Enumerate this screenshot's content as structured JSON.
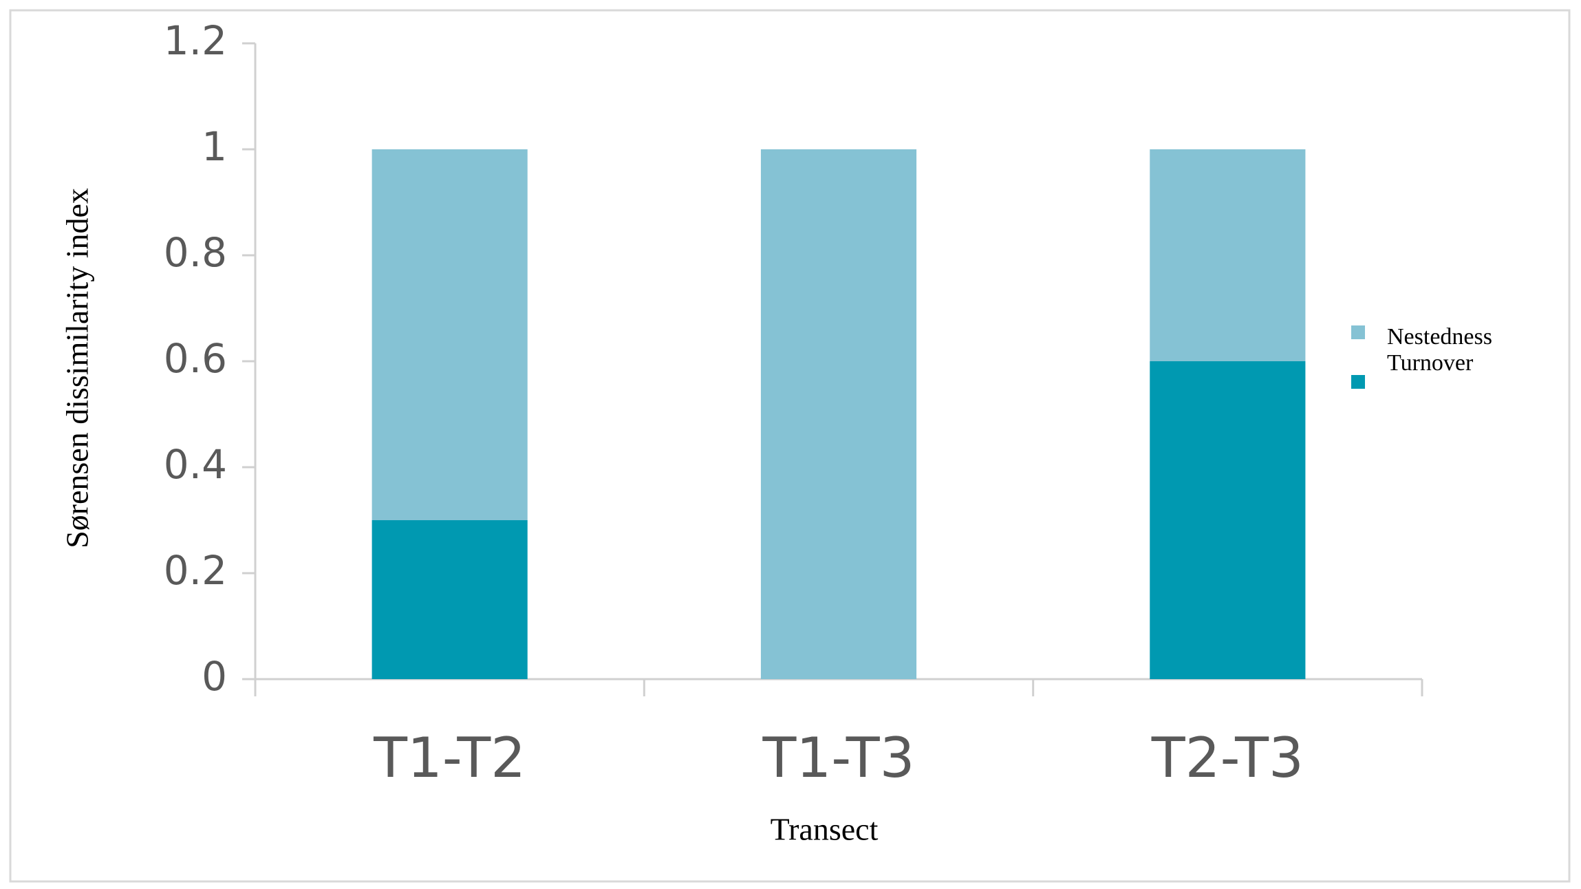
{
  "chart_data": {
    "type": "stacked_bar",
    "y_label": "Sørensen dissimilarity index",
    "x_label": "Transect",
    "categories": [
      "T1-T2",
      "T1-T3",
      "T2-T3"
    ],
    "series": [
      {
        "name": "Turnover",
        "color": "#0099b1",
        "values": [
          0.3,
          0,
          0.6
        ]
      },
      {
        "name": "Nestedness",
        "color": "#85c2d4",
        "values": [
          0.7,
          1.0,
          0.4
        ]
      }
    ],
    "ylim": [
      0,
      1.2
    ],
    "yticks": [
      0,
      0.2,
      0.4,
      0.6,
      0.8,
      1,
      1.2
    ],
    "legend": "right"
  }
}
